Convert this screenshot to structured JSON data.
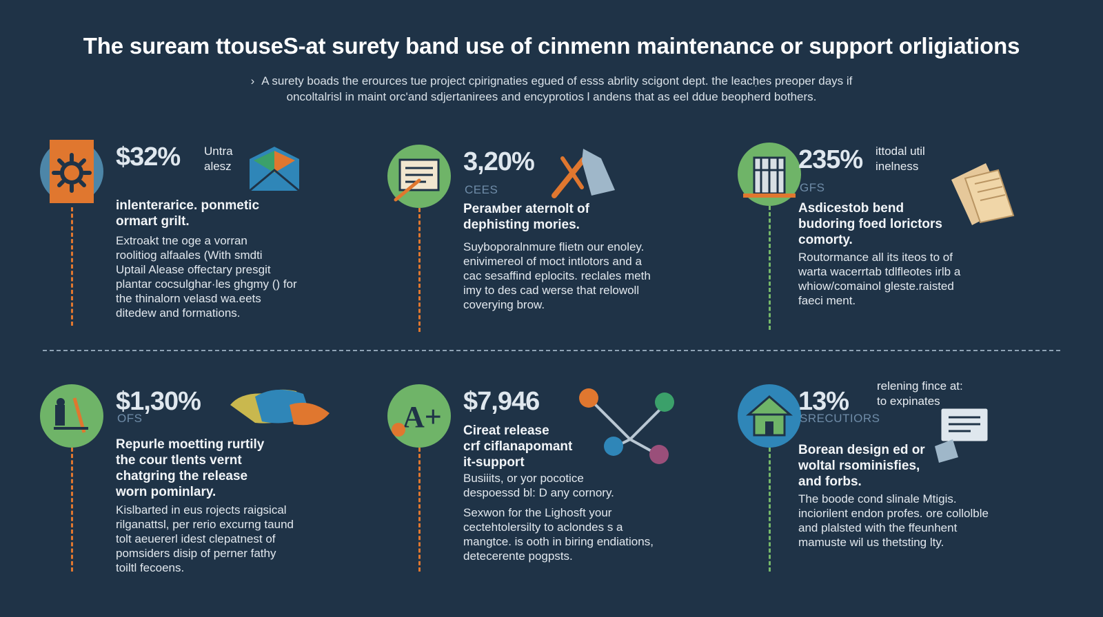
{
  "title": "The suream ttouseS-at surety band use of cinmenn maintenance or support orligiations",
  "subtitle": {
    "bullet": "›",
    "line1": "A surety boads the erources tue project cpirignaties egued of esss abrlity scigont dept. the leacḥes preoper days if",
    "line2": "oncoltalrisl in maint orc'and sdjertanirees and encyprotios l andens that as eel ddue beopherd bothers."
  },
  "cards": [
    {
      "stat": "$32%",
      "note": [
        "Untra",
        "alesz"
      ],
      "head": [
        "inlenteraricе. ponmetic",
        "ormart grilt."
      ],
      "body": [
        "Extroakt tne oge a vorran",
        "roolitiog alfaales (With smdti",
        "Uptail Alease offectary presgit",
        "plantar cocsulghar·les ghgmy () for",
        "the thinalorn velasd wa.eets",
        "ditedew and formations."
      ]
    },
    {
      "stat": "3,20%",
      "sub": "CEES",
      "head": [
        "Perамber aternolt of",
        "dephisting mories."
      ],
      "body": [
        "Suyboporalnmure flietn our enoley.",
        "enivimereol of moct intlotors and a",
        "cac sesaffind eplocits. reclales meth",
        "imy to des cad werse that relowoll",
        "coverying brow."
      ]
    },
    {
      "stat": "235%",
      "note": [
        "ittodal util",
        "inelness"
      ],
      "sub": "GFS",
      "head": [
        "Asdicestob bend",
        "budoring foed lorictors",
        "comorty."
      ],
      "body": [
        "Routormance all its iteos to of",
        "warta wacerrtab tdlfleotes irlb a",
        "whiow/comainol gleste.raisted",
        "faeci ment."
      ]
    },
    {
      "stat": "$1,30%",
      "sub": "OFS",
      "head": [
        "Repurle moetting rurtily",
        "the cour tlents vernt",
        "chatgring the release",
        "worn pominlary."
      ],
      "body": [
        "Kislbarted in eus rojects raigsical",
        "rilganattsl, per rerio excurng taund",
        "tolt aeuererl idest clepatnest of",
        "pomsiders disip of perner fathy",
        "toiltl fecoens."
      ]
    },
    {
      "stat": "$7,946",
      "head": [
        "Cireat release",
        "crf ciflanapomant",
        "it-support"
      ],
      "head2": [
        "Busiiits, or yor pocotice",
        "despoessd bl: D any cornory."
      ],
      "body": [
        "Sexwon for the Lighosft your",
        "cectehtolersilty to aclondes s a",
        "mangtce. is ooth in biring endiations,",
        "detecerente pogpsts."
      ]
    },
    {
      "stat": "13%",
      "note": [
        "relening fince at:",
        "to expinates"
      ],
      "sub": "SRECUTIORS",
      "head": [
        "Borean design ed or",
        "woltal rsominisfies,",
        "and forbs."
      ],
      "body": [
        "The boode cond slinale Mtigis.",
        "inciorilent endon profes. ore collolble",
        "and plalsted with the ffeunhent",
        "mamuste wil us thetsting lty."
      ]
    }
  ],
  "colors": {
    "background": "#1f3347",
    "orange": "#e0772f",
    "green": "#76b86a",
    "blue": "#2f86b8",
    "muted_blue": "#6f8ca8"
  },
  "icons": [
    "gear-icon",
    "document-pen-icon",
    "building-icon",
    "tools-icon",
    "a-plus-icon",
    "house-icon",
    "envelope-icon",
    "wrench-icon",
    "papers-icon",
    "molecule-icon",
    "certificate-icon"
  ]
}
